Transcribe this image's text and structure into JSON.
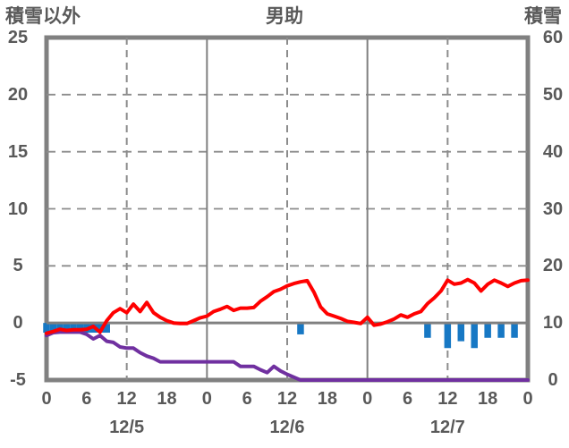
{
  "header": {
    "left_axis_title": "積雪以外",
    "chart_title": "男助",
    "right_axis_title": "積雪"
  },
  "colors": {
    "border": "#808080",
    "grid_dashed": "#8c8c8c",
    "zero_line": "#808080",
    "red_line": "#ff0000",
    "purple_line": "#7030a0",
    "blue_bar": "#1778c4",
    "text": "#595959"
  },
  "chart_data": {
    "type": "combo",
    "title": "男助",
    "left_axis": {
      "label": "積雪以外",
      "min": -5,
      "max": 25,
      "ticks": [
        25,
        20,
        15,
        10,
        5,
        0,
        -5
      ]
    },
    "right_axis": {
      "label": "積雪",
      "min": 0,
      "max": 60,
      "ticks": [
        60,
        50,
        40,
        30,
        20,
        10,
        0
      ]
    },
    "hours_total": 72,
    "x_ticks": [
      {
        "hour": 0,
        "label": "0"
      },
      {
        "hour": 6,
        "label": "6"
      },
      {
        "hour": 12,
        "label": "12"
      },
      {
        "hour": 18,
        "label": "18"
      },
      {
        "hour": 24,
        "label": "0"
      },
      {
        "hour": 30,
        "label": "6"
      },
      {
        "hour": 36,
        "label": "12"
      },
      {
        "hour": 42,
        "label": "18"
      },
      {
        "hour": 48,
        "label": "0"
      },
      {
        "hour": 54,
        "label": "6"
      },
      {
        "hour": 60,
        "label": "12"
      },
      {
        "hour": 66,
        "label": "18"
      },
      {
        "hour": 72,
        "label": "0"
      }
    ],
    "day_labels": [
      {
        "hour": 12,
        "label": "12/5"
      },
      {
        "hour": 36,
        "label": "12/6"
      },
      {
        "hour": 60,
        "label": "12/7"
      }
    ],
    "gridlines": {
      "horizontal_dashed_left_values": [
        20,
        15,
        10,
        5
      ],
      "vertical_solid_hours": [
        24,
        48
      ],
      "vertical_dashed_hours": [
        12,
        36,
        60
      ],
      "zero_line_left_value": 0
    },
    "series": [
      {
        "name": "snow-depth-bars",
        "type": "bar",
        "axis": "right",
        "baseline": 10,
        "bars": [
          {
            "hour": 0,
            "value": 8.3
          },
          {
            "hour": 1,
            "value": 8.3
          },
          {
            "hour": 2,
            "value": 8.3
          },
          {
            "hour": 3,
            "value": 8.3
          },
          {
            "hour": 4,
            "value": 8.3
          },
          {
            "hour": 5,
            "value": 8.3
          },
          {
            "hour": 6,
            "value": 8.3
          },
          {
            "hour": 7,
            "value": 8.3
          },
          {
            "hour": 8,
            "value": 8.3
          },
          {
            "hour": 9,
            "value": 8.3
          },
          {
            "hour": 38,
            "value": 8.0
          },
          {
            "hour": 57,
            "value": 7.4
          },
          {
            "hour": 60,
            "value": 5.6
          },
          {
            "hour": 62,
            "value": 6.8
          },
          {
            "hour": 64,
            "value": 5.6
          },
          {
            "hour": 66,
            "value": 7.4
          },
          {
            "hour": 68,
            "value": 7.4
          },
          {
            "hour": 70,
            "value": 7.4
          }
        ]
      },
      {
        "name": "red-line",
        "type": "line",
        "axis": "left",
        "values": [
          -0.9,
          -0.75,
          -0.55,
          -0.65,
          -0.6,
          -0.6,
          -0.55,
          -0.3,
          -0.8,
          0.2,
          0.9,
          1.25,
          0.9,
          1.65,
          1.0,
          1.8,
          0.9,
          0.5,
          0.2,
          0.0,
          -0.05,
          -0.05,
          0.2,
          0.45,
          0.6,
          1.0,
          1.2,
          1.45,
          1.1,
          1.3,
          1.3,
          1.35,
          1.9,
          2.3,
          2.75,
          2.95,
          3.25,
          3.45,
          3.6,
          3.7,
          2.7,
          1.4,
          0.8,
          0.6,
          0.4,
          0.15,
          0.05,
          -0.05,
          0.5,
          -0.2,
          -0.1,
          0.1,
          0.35,
          0.7,
          0.5,
          0.8,
          1.0,
          1.7,
          2.2,
          2.8,
          3.75,
          3.4,
          3.5,
          3.8,
          3.5,
          2.8,
          3.4,
          3.75,
          3.5,
          3.2,
          3.5,
          3.7,
          3.75
        ]
      },
      {
        "name": "purple-line",
        "type": "line",
        "axis": "left",
        "clip_min": -5,
        "values": [
          -1.1,
          -0.85,
          -0.8,
          -0.8,
          -0.8,
          -0.8,
          -1.0,
          -1.4,
          -1.1,
          -1.6,
          -1.7,
          -2.1,
          -2.2,
          -2.2,
          -2.6,
          -2.9,
          -3.1,
          -3.4,
          -3.4,
          -3.4,
          -3.4,
          -3.4,
          -3.4,
          -3.4,
          -3.4,
          -3.4,
          -3.4,
          -3.4,
          -3.4,
          -3.8,
          -3.8,
          -3.8,
          -4.1,
          -4.35,
          -3.8,
          -4.2,
          -4.5,
          -4.75,
          -5,
          -5,
          -5,
          -5,
          -5,
          -5,
          -5,
          -5,
          -5,
          -5,
          -5,
          -5,
          -5,
          -5,
          -5,
          -5,
          -5,
          -5,
          -5,
          -5,
          -5,
          -5,
          -5,
          -5,
          -5,
          -5,
          -5,
          -5,
          -5,
          -5,
          -5,
          -5,
          -5,
          -5,
          -5
        ]
      }
    ]
  }
}
